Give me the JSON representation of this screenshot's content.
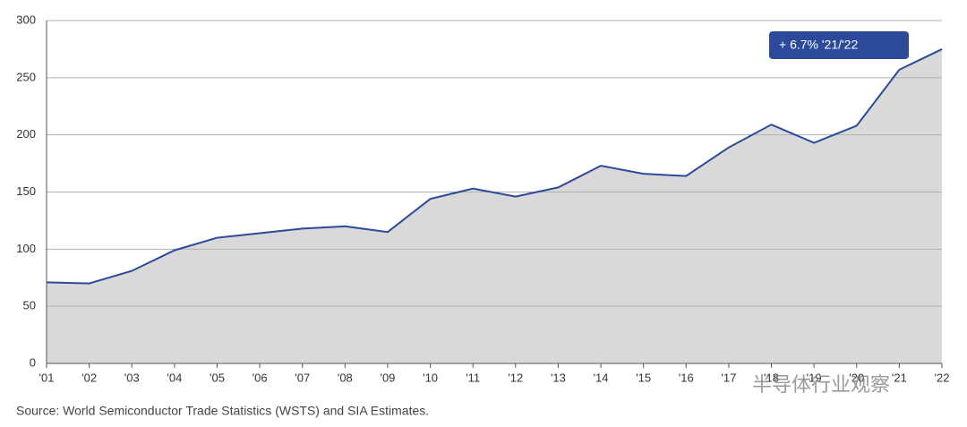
{
  "chart_data": {
    "type": "area",
    "categories": [
      "'01",
      "'02",
      "'03",
      "'04",
      "'05",
      "'06",
      "'07",
      "'08",
      "'09",
      "'10",
      "'11",
      "'12",
      "'13",
      "'14",
      "'15",
      "'16",
      "'17",
      "'18",
      "'19",
      "'20",
      "'21",
      "'22"
    ],
    "values": [
      71,
      70,
      81,
      99,
      110,
      114,
      118,
      120,
      115,
      144,
      153,
      146,
      154,
      173,
      166,
      164,
      189,
      209,
      193,
      208,
      257,
      275
    ],
    "color": "#2b4a9b",
    "fill_color": "#d9d9d9",
    "ylim": [
      0,
      300
    ],
    "yticks": [
      0,
      50,
      100,
      150,
      200,
      250,
      300
    ],
    "grid": true,
    "annotation": "+ 6.7% '21/'22",
    "source": "Source: World Semiconductor Trade Statistics (WSTS) and SIA Estimates.",
    "watermark": "半导体行业观察"
  }
}
